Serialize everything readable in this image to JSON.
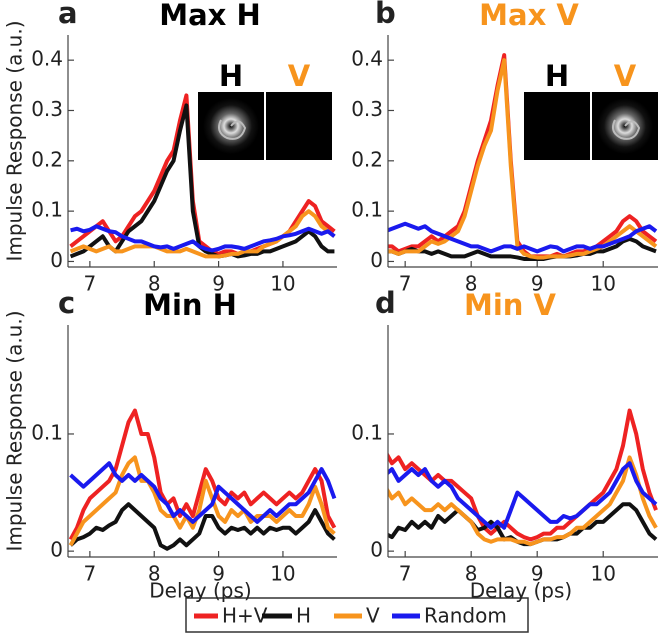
{
  "chart_data": [
    {
      "type": "line",
      "label": "a",
      "title": "Max H",
      "title_color": "#000000",
      "ylabel": "Impulse Response (a.u.)",
      "inset_labels": [
        "H",
        "V"
      ],
      "x": [
        6.7,
        6.8,
        6.9,
        7.0,
        7.1,
        7.2,
        7.3,
        7.4,
        7.5,
        7.6,
        7.7,
        7.8,
        7.9,
        8.0,
        8.1,
        8.2,
        8.3,
        8.4,
        8.5,
        8.6,
        8.7,
        8.8,
        8.9,
        9.0,
        9.1,
        9.2,
        9.3,
        9.4,
        9.5,
        9.6,
        9.7,
        9.8,
        9.9,
        10.0,
        10.1,
        10.2,
        10.3,
        10.4,
        10.5,
        10.6,
        10.7,
        10.8
      ],
      "xlim": [
        6.66,
        10.84
      ],
      "xticks": [
        7,
        8,
        9,
        10
      ],
      "ylim": [
        -0.011,
        0.45
      ],
      "yticks": [
        0,
        0.1,
        0.2,
        0.3,
        0.4
      ],
      "series": [
        {
          "name": "H+V",
          "color": "#ee2222",
          "values": [
            0.03,
            0.04,
            0.05,
            0.06,
            0.07,
            0.08,
            0.06,
            0.04,
            0.05,
            0.07,
            0.09,
            0.1,
            0.12,
            0.14,
            0.17,
            0.2,
            0.22,
            0.28,
            0.33,
            0.12,
            0.04,
            0.03,
            0.02,
            0.015,
            0.02,
            0.02,
            0.015,
            0.02,
            0.02,
            0.025,
            0.03,
            0.035,
            0.04,
            0.05,
            0.06,
            0.08,
            0.1,
            0.12,
            0.11,
            0.08,
            0.07,
            0.06
          ]
        },
        {
          "name": "H",
          "color": "#111111",
          "values": [
            0.01,
            0.015,
            0.02,
            0.03,
            0.04,
            0.05,
            0.03,
            0.02,
            0.04,
            0.06,
            0.07,
            0.08,
            0.1,
            0.12,
            0.15,
            0.18,
            0.2,
            0.26,
            0.31,
            0.1,
            0.03,
            0.02,
            0.015,
            0.01,
            0.012,
            0.015,
            0.01,
            0.012,
            0.015,
            0.015,
            0.02,
            0.02,
            0.025,
            0.03,
            0.035,
            0.04,
            0.05,
            0.06,
            0.05,
            0.03,
            0.02,
            0.02
          ]
        },
        {
          "name": "V",
          "color": "#f7941d",
          "values": [
            0.02,
            0.025,
            0.03,
            0.025,
            0.02,
            0.025,
            0.03,
            0.02,
            0.02,
            0.025,
            0.03,
            0.03,
            0.03,
            0.03,
            0.025,
            0.02,
            0.02,
            0.02,
            0.025,
            0.02,
            0.015,
            0.01,
            0.01,
            0.01,
            0.012,
            0.015,
            0.015,
            0.02,
            0.02,
            0.02,
            0.03,
            0.035,
            0.04,
            0.05,
            0.06,
            0.07,
            0.09,
            0.1,
            0.09,
            0.07,
            0.06,
            0.05
          ]
        },
        {
          "name": "Random",
          "color": "#1a1aee",
          "values": [
            0.062,
            0.065,
            0.06,
            0.063,
            0.07,
            0.065,
            0.06,
            0.058,
            0.05,
            0.045,
            0.04,
            0.04,
            0.035,
            0.03,
            0.028,
            0.03,
            0.025,
            0.03,
            0.035,
            0.04,
            0.03,
            0.025,
            0.022,
            0.025,
            0.03,
            0.03,
            0.028,
            0.025,
            0.03,
            0.035,
            0.04,
            0.042,
            0.045,
            0.05,
            0.052,
            0.055,
            0.06,
            0.065,
            0.06,
            0.055,
            0.06,
            0.05
          ]
        }
      ]
    },
    {
      "type": "line",
      "label": "b",
      "title": "Max V",
      "title_color": "#f7941d",
      "inset_labels": [
        "H",
        "V"
      ],
      "x": [
        6.7,
        6.8,
        6.9,
        7.0,
        7.1,
        7.2,
        7.3,
        7.4,
        7.5,
        7.6,
        7.7,
        7.8,
        7.9,
        8.0,
        8.1,
        8.2,
        8.3,
        8.4,
        8.5,
        8.6,
        8.7,
        8.8,
        8.9,
        9.0,
        9.1,
        9.2,
        9.3,
        9.4,
        9.5,
        9.6,
        9.7,
        9.8,
        9.9,
        10.0,
        10.1,
        10.2,
        10.3,
        10.4,
        10.5,
        10.6,
        10.7,
        10.8
      ],
      "xlim": [
        6.74,
        10.83
      ],
      "xticks": [
        7,
        8,
        9,
        10
      ],
      "ylim": [
        -0.011,
        0.45
      ],
      "yticks": [
        0,
        0.1,
        0.2,
        0.3,
        0.4
      ],
      "series": [
        {
          "name": "H+V",
          "color": "#ee2222",
          "values": [
            0.03,
            0.03,
            0.02,
            0.025,
            0.03,
            0.03,
            0.04,
            0.05,
            0.04,
            0.05,
            0.06,
            0.07,
            0.1,
            0.15,
            0.2,
            0.24,
            0.28,
            0.35,
            0.41,
            0.2,
            0.04,
            0.02,
            0.01,
            0.01,
            0.01,
            0.01,
            0.015,
            0.01,
            0.015,
            0.02,
            0.02,
            0.025,
            0.03,
            0.04,
            0.05,
            0.06,
            0.08,
            0.09,
            0.08,
            0.06,
            0.05,
            0.04
          ]
        },
        {
          "name": "H",
          "color": "#111111",
          "values": [
            0.02,
            0.02,
            0.015,
            0.02,
            0.025,
            0.02,
            0.02,
            0.015,
            0.02,
            0.015,
            0.01,
            0.01,
            0.01,
            0.015,
            0.02,
            0.015,
            0.01,
            0.01,
            0.01,
            0.01,
            0.008,
            0.005,
            0.005,
            0.005,
            0.005,
            0.008,
            0.01,
            0.01,
            0.01,
            0.012,
            0.015,
            0.015,
            0.02,
            0.02,
            0.025,
            0.03,
            0.04,
            0.045,
            0.04,
            0.03,
            0.025,
            0.02
          ]
        },
        {
          "name": "V",
          "color": "#f7941d",
          "values": [
            0.02,
            0.02,
            0.015,
            0.02,
            0.02,
            0.02,
            0.03,
            0.04,
            0.035,
            0.04,
            0.05,
            0.06,
            0.09,
            0.14,
            0.19,
            0.23,
            0.26,
            0.34,
            0.4,
            0.19,
            0.03,
            0.015,
            0.01,
            0.008,
            0.008,
            0.01,
            0.01,
            0.01,
            0.012,
            0.015,
            0.015,
            0.02,
            0.025,
            0.03,
            0.04,
            0.05,
            0.06,
            0.07,
            0.06,
            0.05,
            0.04,
            0.03
          ]
        },
        {
          "name": "Random",
          "color": "#1a1aee",
          "values": [
            0.06,
            0.065,
            0.07,
            0.075,
            0.07,
            0.065,
            0.07,
            0.06,
            0.055,
            0.05,
            0.045,
            0.04,
            0.035,
            0.03,
            0.03,
            0.025,
            0.02,
            0.025,
            0.03,
            0.03,
            0.025,
            0.03,
            0.025,
            0.02,
            0.025,
            0.03,
            0.028,
            0.02,
            0.025,
            0.03,
            0.03,
            0.025,
            0.03,
            0.03,
            0.035,
            0.04,
            0.045,
            0.05,
            0.06,
            0.065,
            0.07,
            0.06
          ]
        }
      ]
    },
    {
      "type": "line",
      "label": "c",
      "title": "Min H",
      "title_color": "#000000",
      "ylabel": "Impulse Response (a.u.)",
      "xlabel": "Delay (ps)",
      "x": [
        6.7,
        6.8,
        6.9,
        7.0,
        7.1,
        7.2,
        7.3,
        7.4,
        7.5,
        7.6,
        7.7,
        7.8,
        7.9,
        8.0,
        8.1,
        8.2,
        8.3,
        8.4,
        8.5,
        8.6,
        8.7,
        8.8,
        8.9,
        9.0,
        9.1,
        9.2,
        9.3,
        9.4,
        9.5,
        9.6,
        9.7,
        9.8,
        9.9,
        10.0,
        10.1,
        10.2,
        10.3,
        10.4,
        10.5,
        10.6,
        10.7,
        10.8
      ],
      "xlim": [
        6.66,
        10.84
      ],
      "xticks": [
        7,
        8,
        9,
        10
      ],
      "ylim": [
        -0.005,
        0.193
      ],
      "yticks": [
        0,
        0.1
      ],
      "series": [
        {
          "name": "H+V",
          "color": "#ee2222",
          "values": [
            0.01,
            0.02,
            0.035,
            0.045,
            0.05,
            0.055,
            0.06,
            0.07,
            0.09,
            0.11,
            0.12,
            0.1,
            0.1,
            0.08,
            0.05,
            0.04,
            0.045,
            0.03,
            0.04,
            0.03,
            0.05,
            0.07,
            0.06,
            0.045,
            0.04,
            0.05,
            0.045,
            0.05,
            0.04,
            0.045,
            0.05,
            0.045,
            0.04,
            0.045,
            0.05,
            0.045,
            0.05,
            0.06,
            0.07,
            0.06,
            0.03,
            0.02
          ]
        },
        {
          "name": "H",
          "color": "#111111",
          "values": [
            0.005,
            0.01,
            0.012,
            0.015,
            0.02,
            0.018,
            0.022,
            0.025,
            0.035,
            0.04,
            0.035,
            0.03,
            0.025,
            0.02,
            0.005,
            0.002,
            0.005,
            0.01,
            0.005,
            0.01,
            0.015,
            0.03,
            0.03,
            0.02,
            0.015,
            0.02,
            0.018,
            0.02,
            0.015,
            0.02,
            0.015,
            0.02,
            0.018,
            0.02,
            0.02,
            0.015,
            0.02,
            0.025,
            0.035,
            0.025,
            0.015,
            0.01
          ]
        },
        {
          "name": "V",
          "color": "#f7941d",
          "values": [
            0.005,
            0.015,
            0.025,
            0.03,
            0.035,
            0.04,
            0.045,
            0.05,
            0.065,
            0.075,
            0.08,
            0.06,
            0.06,
            0.05,
            0.035,
            0.03,
            0.03,
            0.02,
            0.03,
            0.02,
            0.035,
            0.06,
            0.045,
            0.03,
            0.025,
            0.035,
            0.03,
            0.035,
            0.025,
            0.03,
            0.03,
            0.03,
            0.025,
            0.03,
            0.035,
            0.03,
            0.03,
            0.04,
            0.055,
            0.04,
            0.02,
            0.015
          ]
        },
        {
          "name": "Random",
          "color": "#1a1aee",
          "values": [
            0.065,
            0.06,
            0.055,
            0.06,
            0.065,
            0.07,
            0.075,
            0.065,
            0.06,
            0.065,
            0.06,
            0.065,
            0.06,
            0.055,
            0.045,
            0.04,
            0.03,
            0.035,
            0.03,
            0.025,
            0.03,
            0.035,
            0.04,
            0.055,
            0.05,
            0.045,
            0.04,
            0.035,
            0.03,
            0.025,
            0.03,
            0.035,
            0.03,
            0.035,
            0.04,
            0.04,
            0.045,
            0.05,
            0.06,
            0.07,
            0.06,
            0.045
          ]
        }
      ]
    },
    {
      "type": "line",
      "label": "d",
      "title": "Min V",
      "title_color": "#f7941d",
      "xlabel": "Delay (ps)",
      "x": [
        6.7,
        6.8,
        6.9,
        7.0,
        7.1,
        7.2,
        7.3,
        7.4,
        7.5,
        7.6,
        7.7,
        7.8,
        7.9,
        8.0,
        8.1,
        8.2,
        8.3,
        8.4,
        8.5,
        8.6,
        8.7,
        8.8,
        8.9,
        9.0,
        9.1,
        9.2,
        9.3,
        9.4,
        9.5,
        9.6,
        9.7,
        9.8,
        9.9,
        10.0,
        10.1,
        10.2,
        10.3,
        10.4,
        10.5,
        10.6,
        10.7,
        10.8
      ],
      "xlim": [
        6.74,
        10.83
      ],
      "xticks": [
        7,
        8,
        9,
        10
      ],
      "ylim": [
        -0.005,
        0.193
      ],
      "yticks": [
        0,
        0.1
      ],
      "series": [
        {
          "name": "H+V",
          "color": "#ee2222",
          "values": [
            0.085,
            0.075,
            0.08,
            0.07,
            0.075,
            0.07,
            0.065,
            0.06,
            0.065,
            0.06,
            0.06,
            0.055,
            0.05,
            0.045,
            0.03,
            0.02,
            0.015,
            0.02,
            0.025,
            0.02,
            0.015,
            0.012,
            0.01,
            0.012,
            0.015,
            0.015,
            0.02,
            0.02,
            0.025,
            0.03,
            0.035,
            0.04,
            0.045,
            0.05,
            0.06,
            0.07,
            0.09,
            0.12,
            0.1,
            0.07,
            0.05,
            0.035
          ]
        },
        {
          "name": "H",
          "color": "#111111",
          "values": [
            0.015,
            0.012,
            0.02,
            0.018,
            0.025,
            0.02,
            0.025,
            0.02,
            0.03,
            0.025,
            0.03,
            0.035,
            0.03,
            0.025,
            0.018,
            0.02,
            0.025,
            0.02,
            0.01,
            0.012,
            0.008,
            0.006,
            0.006,
            0.008,
            0.01,
            0.01,
            0.01,
            0.012,
            0.015,
            0.015,
            0.02,
            0.02,
            0.025,
            0.025,
            0.03,
            0.035,
            0.04,
            0.04,
            0.035,
            0.025,
            0.015,
            0.01
          ]
        },
        {
          "name": "V",
          "color": "#f7941d",
          "values": [
            0.055,
            0.045,
            0.05,
            0.04,
            0.045,
            0.04,
            0.035,
            0.035,
            0.04,
            0.035,
            0.04,
            0.035,
            0.03,
            0.025,
            0.015,
            0.01,
            0.008,
            0.01,
            0.01,
            0.01,
            0.008,
            0.008,
            0.006,
            0.008,
            0.01,
            0.01,
            0.012,
            0.012,
            0.015,
            0.02,
            0.02,
            0.025,
            0.03,
            0.035,
            0.04,
            0.05,
            0.06,
            0.08,
            0.065,
            0.045,
            0.03,
            0.02
          ]
        },
        {
          "name": "Random",
          "color": "#1a1aee",
          "values": [
            0.065,
            0.07,
            0.06,
            0.065,
            0.07,
            0.065,
            0.07,
            0.06,
            0.055,
            0.06,
            0.055,
            0.045,
            0.04,
            0.035,
            0.03,
            0.025,
            0.02,
            0.025,
            0.02,
            0.035,
            0.05,
            0.045,
            0.04,
            0.035,
            0.03,
            0.025,
            0.025,
            0.03,
            0.028,
            0.03,
            0.035,
            0.04,
            0.04,
            0.045,
            0.05,
            0.06,
            0.07,
            0.075,
            0.06,
            0.05,
            0.045,
            0.04
          ]
        }
      ]
    }
  ]
}
